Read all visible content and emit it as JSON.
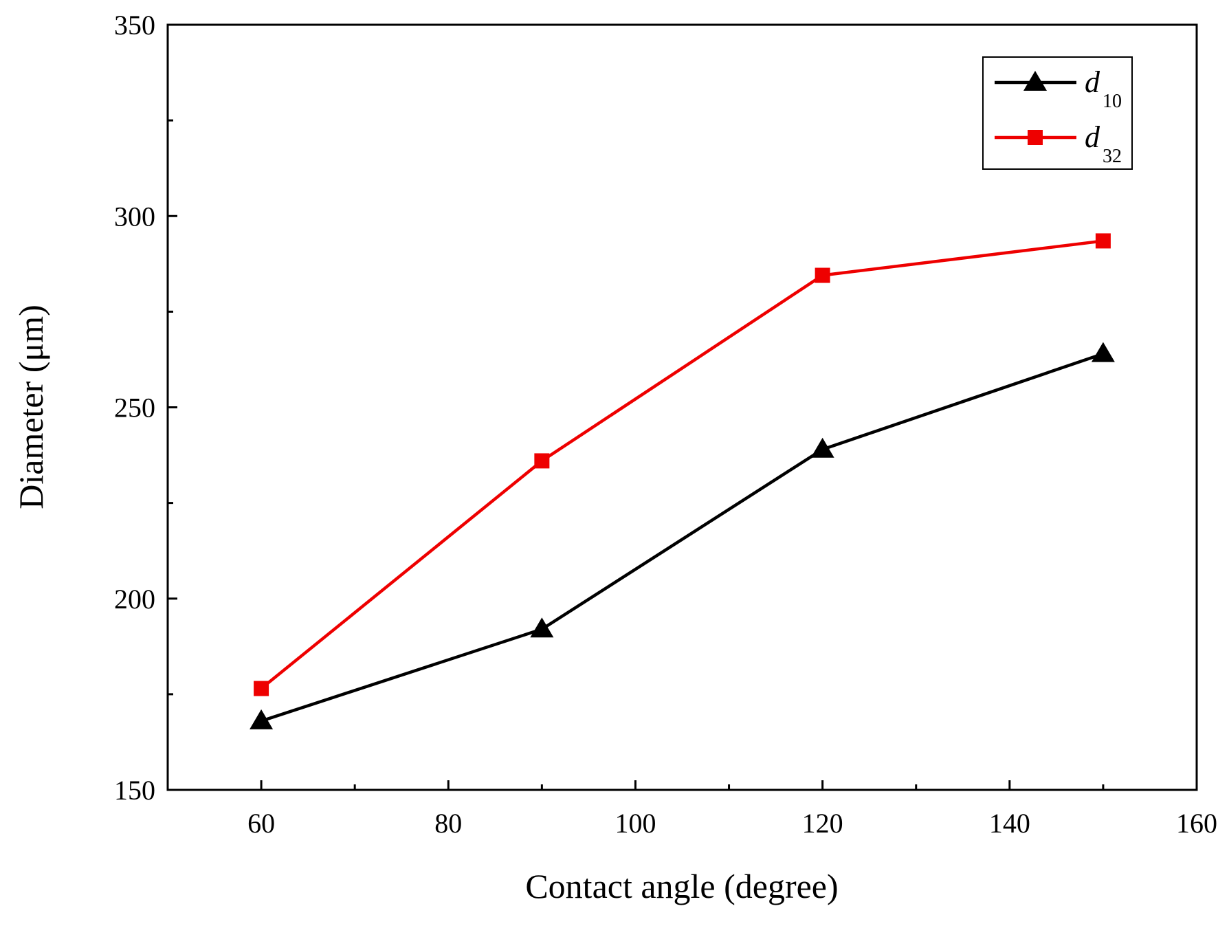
{
  "chart_data": {
    "type": "line",
    "title": "",
    "xlabel": "Contact angle (degree)",
    "ylabel": "Diameter (μm)",
    "xlim": [
      50,
      160
    ],
    "ylim": [
      150,
      350
    ],
    "x_ticks": [
      60,
      80,
      100,
      120,
      140,
      160
    ],
    "x_minor_ticks": [
      70,
      90,
      110,
      130,
      150
    ],
    "y_ticks": [
      150,
      200,
      250,
      300,
      350
    ],
    "y_minor_ticks": [
      175,
      225,
      275,
      325
    ],
    "grid": false,
    "legend_position": "top-right",
    "x": [
      60,
      90,
      120,
      150
    ],
    "series": [
      {
        "name": "d10",
        "label_main": "d",
        "label_sub": "10",
        "color": "#000000",
        "marker": "triangle",
        "values": [
          168,
          192,
          239,
          264
        ]
      },
      {
        "name": "d32",
        "label_main": "d",
        "label_sub": "32",
        "color": "#ee0000",
        "marker": "square",
        "values": [
          176.5,
          236,
          284.5,
          293.5
        ]
      }
    ]
  }
}
